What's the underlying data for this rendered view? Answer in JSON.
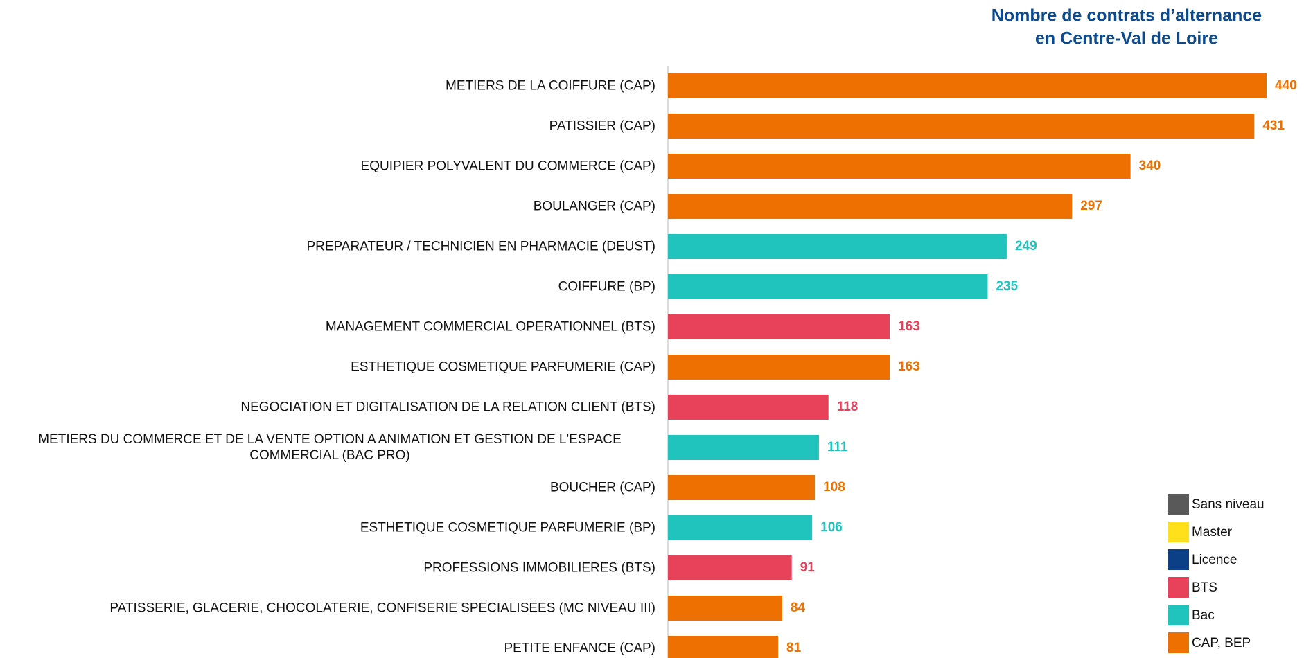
{
  "chart_data": {
    "type": "hbar",
    "title": [
      "Nombre de contrats d’alternance",
      "en Centre-Val de Loire"
    ],
    "categories": [
      "METIERS DE LA COIFFURE (CAP)",
      "PATISSIER (CAP)",
      "EQUIPIER POLYVALENT DU COMMERCE (CAP)",
      "BOULANGER (CAP)",
      "PREPARATEUR / TECHNICIEN EN PHARMACIE (DEUST)",
      "COIFFURE (BP)",
      "MANAGEMENT COMMERCIAL OPERATIONNEL (BTS)",
      "ESTHETIQUE COSMETIQUE PARFUMERIE (CAP)",
      "NEGOCIATION ET DIGITALISATION DE LA RELATION CLIENT (BTS)",
      "METIERS DU COMMERCE ET DE LA VENTE OPTION A ANIMATION ET GESTION DE L'ESPACE COMMERCIAL (BAC PRO)",
      "BOUCHER (CAP)",
      "ESTHETIQUE COSMETIQUE PARFUMERIE (BP)",
      "PROFESSIONS IMMOBILIERES (BTS)",
      "PATISSERIE, GLACERIE, CHOCOLATERIE, CONFISERIE SPECIALISEES (MC NIVEAU III)",
      "PETITE ENFANCE (CAP)"
    ],
    "values": [
      440,
      431,
      340,
      297,
      249,
      235,
      163,
      163,
      118,
      111,
      108,
      106,
      91,
      84,
      81
    ],
    "colors": [
      "#ed7000",
      "#ed7000",
      "#ed7000",
      "#ed7000",
      "#20c4bd",
      "#20c4bd",
      "#e8415a",
      "#ed7000",
      "#e8415a",
      "#20c4bd",
      "#ed7000",
      "#20c4bd",
      "#e8415a",
      "#ed7000",
      "#ed7000"
    ],
    "legend": [
      {
        "name": "Sans niveau",
        "color": "#595959"
      },
      {
        "name": "Master",
        "color": "#ffe01b"
      },
      {
        "name": "Licence",
        "color": "#0b3f86"
      },
      {
        "name": "BTS",
        "color": "#e8415a"
      },
      {
        "name": "Bac",
        "color": "#20c4bd"
      },
      {
        "name": "CAP, BEP",
        "color": "#ed7000"
      }
    ]
  }
}
